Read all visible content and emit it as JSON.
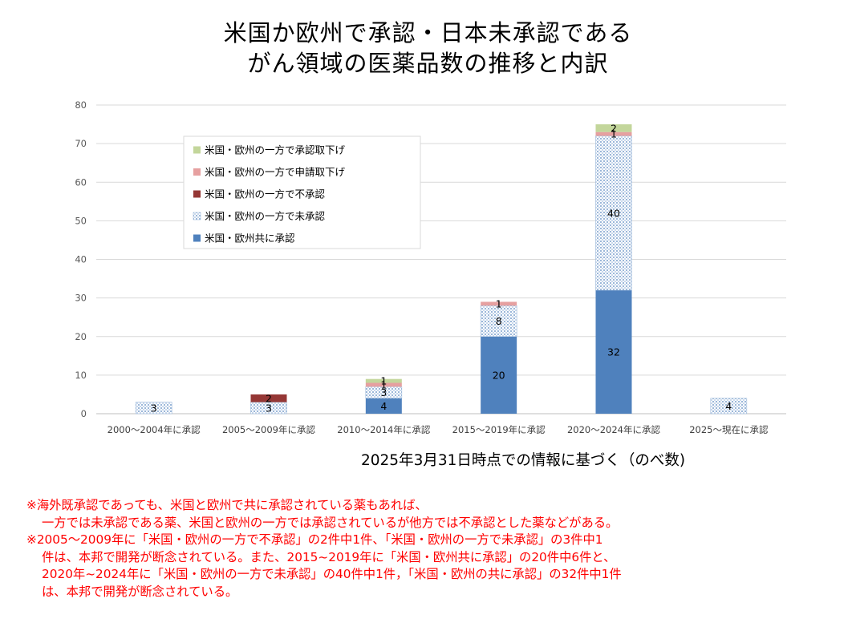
{
  "title": {
    "line1": "米国か欧州で承認・日本未承認である",
    "line2": "がん領域の医薬品数の推移と内訳"
  },
  "caption": "2025年3月31日時点での情報に基づく（のべ数)",
  "notes": [
    "※海外既承認であっても、米国と欧州で共に承認されている薬もあれば、",
    "一方では未承認である薬、米国と欧州の一方では承認されているが他方では不承認とした薬などがある。",
    "※2005～2009年に「米国・欧州の一方で不承認」の2件中1件、「米国・欧州の一方で未承認」の3件中1",
    "件は、本邦で開発が断念されている。また、2015~2019年に「米国・欧州共に承認」の20件中6件と、",
    "2020年~2024年に「米国・欧州の一方で未承認」の40件中1件，「米国・欧州の共に承認」の32件中1件",
    "は、本邦で開発が断念されている。"
  ],
  "chart_data": {
    "type": "bar",
    "stacked": true,
    "categories": [
      "2000～2004年に承認",
      "2005～2009年に承認",
      "2010～2014年に承認",
      "2015～2019年に承認",
      "2020～2024年に承認",
      "2025～現在に承認"
    ],
    "ylim": [
      0,
      80
    ],
    "yticks": [
      0,
      10,
      20,
      30,
      40,
      50,
      60,
      70,
      80
    ],
    "grid": true,
    "legend_position": "top-left",
    "series": [
      {
        "name": "米国・欧州共に承認",
        "values": [
          0,
          0,
          4,
          20,
          32,
          0
        ],
        "color": "#4f81bd",
        "pattern": "solid"
      },
      {
        "name": "米国・欧州の一方で未承認",
        "values": [
          3,
          3,
          3,
          8,
          40,
          4
        ],
        "color": "#dce6f2",
        "pattern": "dots"
      },
      {
        "name": "米国・欧州の一方で不承認",
        "values": [
          0,
          2,
          0,
          0,
          0,
          0
        ],
        "color": "#953735",
        "pattern": "solid"
      },
      {
        "name": "米国・欧州の一方で申請取下げ",
        "values": [
          0,
          0,
          1,
          1,
          1,
          0
        ],
        "color": "#e6a0a0",
        "pattern": "solid"
      },
      {
        "name": "米国・欧州の一方で承認取下げ",
        "values": [
          0,
          0,
          1,
          0,
          2,
          0
        ],
        "color": "#c3d69b",
        "pattern": "solid"
      }
    ],
    "legend_order": [
      "米国・欧州の一方で承認取下げ",
      "米国・欧州の一方で申請取下げ",
      "米国・欧州の一方で不承認",
      "米国・欧州の一方で未承認",
      "米国・欧州共に承認"
    ]
  }
}
